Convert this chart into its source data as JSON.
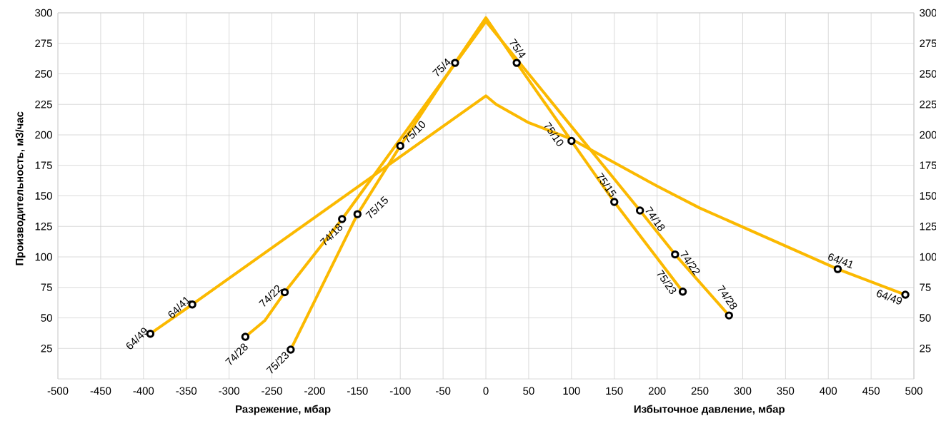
{
  "chart_data": {
    "type": "line",
    "xlabel": "Разрежение, мбар",
    "ylabel": "Производительность, м3/час",
    "xlim": [
      -500,
      500
    ],
    "xticks": [
      -500,
      -450,
      -400,
      -350,
      -300,
      -250,
      -200,
      -150,
      -100,
      -50,
      0,
      50,
      100,
      150,
      200,
      250,
      300,
      350,
      400,
      450,
      500
    ],
    "ylim": [
      0,
      300
    ],
    "yticks": [
      25,
      50,
      75,
      100,
      125,
      150,
      175,
      200,
      225,
      250,
      275,
      300
    ],
    "y2lim": [
      0,
      300
    ],
    "y2ticks": [
      25,
      50,
      75,
      100,
      125,
      150,
      175,
      200,
      225,
      250,
      275,
      300
    ],
    "grid": true,
    "line_style": "solid",
    "series": [
      {
        "color": "#fbb900",
        "marker": "none",
        "x": [
          -392,
          -343,
          0,
          12,
          50,
          100,
          200,
          250,
          411,
          490
        ],
        "values": [
          37,
          61,
          232,
          225,
          210,
          196.5,
          158,
          140,
          90,
          69
        ]
      },
      {
        "color": "#fbb900",
        "marker": "none",
        "x": [
          -281,
          -258,
          -235,
          -168,
          0,
          180,
          221,
          284
        ],
        "values": [
          34.5,
          48,
          71,
          131,
          293,
          138,
          102,
          52
        ]
      },
      {
        "color": "#fbb900",
        "marker": "none",
        "x": [
          -228,
          -150,
          -100,
          -36,
          0,
          36,
          100,
          150,
          230
        ],
        "values": [
          24,
          135,
          191,
          259,
          296,
          259,
          195,
          145,
          71.5
        ]
      },
      {
        "type": "scatter",
        "color": "#000000",
        "marker": "circle",
        "x": [
          -392,
          -343,
          -281,
          -235,
          -168,
          -228,
          -150,
          -100,
          -36,
          36,
          100,
          150,
          230,
          180,
          221,
          284,
          411,
          490
        ],
        "values": [
          37,
          61,
          34.5,
          71,
          131,
          24,
          135,
          191,
          259,
          259,
          195,
          145,
          71.5,
          138,
          102,
          52,
          90,
          69
        ]
      }
    ],
    "annotations": [
      {
        "text": "64/49",
        "x": -392,
        "y": 37
      },
      {
        "text": "64/41",
        "x": -343,
        "y": 61
      },
      {
        "text": "74/28",
        "x": -281,
        "y": 34.5
      },
      {
        "text": "74/22",
        "x": -235,
        "y": 71
      },
      {
        "text": "74/18",
        "x": -168,
        "y": 131
      },
      {
        "text": "75/23",
        "x": -228,
        "y": 24
      },
      {
        "text": "75/15",
        "x": -150,
        "y": 135
      },
      {
        "text": "75/10",
        "x": -100,
        "y": 191
      },
      {
        "text": "75/4",
        "x": -36,
        "y": 259
      },
      {
        "text": "75/4",
        "x": 36,
        "y": 259
      },
      {
        "text": "75/10",
        "x": 100,
        "y": 195
      },
      {
        "text": "75/15",
        "x": 150,
        "y": 145
      },
      {
        "text": "75/23",
        "x": 230,
        "y": 71.5
      },
      {
        "text": "74/18",
        "x": 180,
        "y": 138
      },
      {
        "text": "74/22",
        "x": 221,
        "y": 102
      },
      {
        "text": "74/28",
        "x": 284,
        "y": 52
      },
      {
        "text": "64/41",
        "x": 411,
        "y": 90
      },
      {
        "text": "64/49",
        "x": 490,
        "y": 69
      },
      "Избыточное давление, мбар"
    ]
  }
}
